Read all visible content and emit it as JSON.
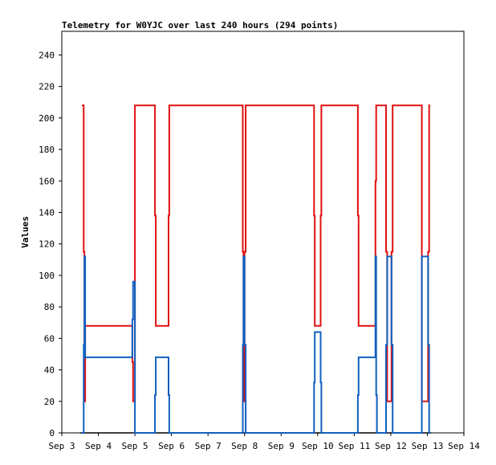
{
  "chart_data": {
    "type": "line",
    "title": "Telemetry for W0YJC over last 240 hours (294 points)",
    "ylabel": "Values",
    "xlabel": "",
    "xlim": [
      0,
      11
    ],
    "ylim": [
      0,
      255
    ],
    "x_ticks": [
      {
        "x": 0,
        "label": "Sep 3"
      },
      {
        "x": 1,
        "label": "Sep 4"
      },
      {
        "x": 2,
        "label": "Sep 5"
      },
      {
        "x": 3,
        "label": "Sep 6"
      },
      {
        "x": 4,
        "label": "Sep 7"
      },
      {
        "x": 5,
        "label": "Sep 8"
      },
      {
        "x": 6,
        "label": "Sep 9"
      },
      {
        "x": 7,
        "label": "Sep 10"
      },
      {
        "x": 8,
        "label": "Sep 11"
      },
      {
        "x": 9,
        "label": "Sep 12"
      },
      {
        "x": 10,
        "label": "Sep 13"
      },
      {
        "x": 11,
        "label": "Sep 14"
      }
    ],
    "y_ticks": [
      0,
      20,
      40,
      60,
      80,
      100,
      120,
      140,
      160,
      180,
      200,
      220,
      240
    ],
    "grid": false,
    "series": [
      {
        "color": "#e01010",
        "points": [
          [
            0.55,
            208
          ],
          [
            0.6,
            208
          ],
          [
            0.6,
            115
          ],
          [
            0.62,
            115
          ],
          [
            0.62,
            20
          ],
          [
            0.64,
            20
          ],
          [
            0.64,
            68
          ],
          [
            1.05,
            68
          ],
          [
            1.05,
            68
          ],
          [
            1.93,
            68
          ],
          [
            1.93,
            45
          ],
          [
            1.95,
            45
          ],
          [
            1.95,
            20
          ],
          [
            2.0,
            20
          ],
          [
            2.0,
            208
          ],
          [
            2.55,
            208
          ],
          [
            2.55,
            138
          ],
          [
            2.57,
            138
          ],
          [
            2.57,
            68
          ],
          [
            2.92,
            68
          ],
          [
            2.92,
            138
          ],
          [
            2.94,
            138
          ],
          [
            2.94,
            208
          ],
          [
            4.95,
            208
          ],
          [
            4.95,
            115
          ],
          [
            4.97,
            115
          ],
          [
            4.97,
            20
          ],
          [
            5.0,
            20
          ],
          [
            5.0,
            115
          ],
          [
            5.03,
            115
          ],
          [
            5.03,
            208
          ],
          [
            6.9,
            208
          ],
          [
            6.9,
            138
          ],
          [
            6.92,
            138
          ],
          [
            6.92,
            68
          ],
          [
            7.08,
            68
          ],
          [
            7.08,
            138
          ],
          [
            7.1,
            138
          ],
          [
            7.1,
            208
          ],
          [
            8.1,
            208
          ],
          [
            8.1,
            138
          ],
          [
            8.12,
            138
          ],
          [
            8.12,
            68
          ],
          [
            8.58,
            68
          ],
          [
            8.58,
            160
          ],
          [
            8.6,
            160
          ],
          [
            8.6,
            208
          ],
          [
            8.87,
            208
          ],
          [
            8.87,
            115
          ],
          [
            8.9,
            115
          ],
          [
            8.9,
            20
          ],
          [
            9.02,
            20
          ],
          [
            9.02,
            115
          ],
          [
            9.05,
            115
          ],
          [
            9.05,
            208
          ],
          [
            9.85,
            208
          ],
          [
            9.85,
            20
          ],
          [
            10.02,
            20
          ],
          [
            10.02,
            115
          ],
          [
            10.05,
            115
          ],
          [
            10.05,
            208
          ],
          [
            10.08,
            208
          ]
        ]
      },
      {
        "color": "#1060c0",
        "points": [
          [
            0.55,
            0
          ],
          [
            0.6,
            0
          ],
          [
            0.6,
            56
          ],
          [
            0.62,
            56
          ],
          [
            0.62,
            112
          ],
          [
            0.64,
            112
          ],
          [
            0.64,
            48
          ],
          [
            1.93,
            48
          ],
          [
            1.93,
            72
          ],
          [
            1.95,
            72
          ],
          [
            1.95,
            96
          ],
          [
            2.0,
            96
          ],
          [
            2.0,
            0
          ],
          [
            2.55,
            0
          ],
          [
            2.55,
            24
          ],
          [
            2.57,
            24
          ],
          [
            2.57,
            48
          ],
          [
            2.92,
            48
          ],
          [
            2.92,
            24
          ],
          [
            2.94,
            24
          ],
          [
            2.94,
            0
          ],
          [
            4.95,
            0
          ],
          [
            4.95,
            56
          ],
          [
            4.97,
            56
          ],
          [
            4.97,
            112
          ],
          [
            5.0,
            112
          ],
          [
            5.0,
            56
          ],
          [
            5.03,
            56
          ],
          [
            5.03,
            0
          ],
          [
            6.9,
            0
          ],
          [
            6.9,
            32
          ],
          [
            6.92,
            32
          ],
          [
            6.92,
            64
          ],
          [
            7.08,
            64
          ],
          [
            7.08,
            32
          ],
          [
            7.1,
            32
          ],
          [
            7.1,
            0
          ],
          [
            8.1,
            0
          ],
          [
            8.1,
            24
          ],
          [
            8.12,
            24
          ],
          [
            8.12,
            48
          ],
          [
            8.58,
            48
          ],
          [
            8.58,
            112
          ],
          [
            8.6,
            112
          ],
          [
            8.6,
            24
          ],
          [
            8.62,
            24
          ],
          [
            8.62,
            0
          ],
          [
            8.87,
            0
          ],
          [
            8.87,
            56
          ],
          [
            8.9,
            56
          ],
          [
            8.9,
            112
          ],
          [
            9.02,
            112
          ],
          [
            9.02,
            56
          ],
          [
            9.05,
            56
          ],
          [
            9.05,
            0
          ],
          [
            9.85,
            0
          ],
          [
            9.85,
            112
          ],
          [
            10.02,
            112
          ],
          [
            10.02,
            56
          ],
          [
            10.05,
            56
          ],
          [
            10.05,
            0
          ],
          [
            10.08,
            0
          ]
        ]
      }
    ]
  }
}
